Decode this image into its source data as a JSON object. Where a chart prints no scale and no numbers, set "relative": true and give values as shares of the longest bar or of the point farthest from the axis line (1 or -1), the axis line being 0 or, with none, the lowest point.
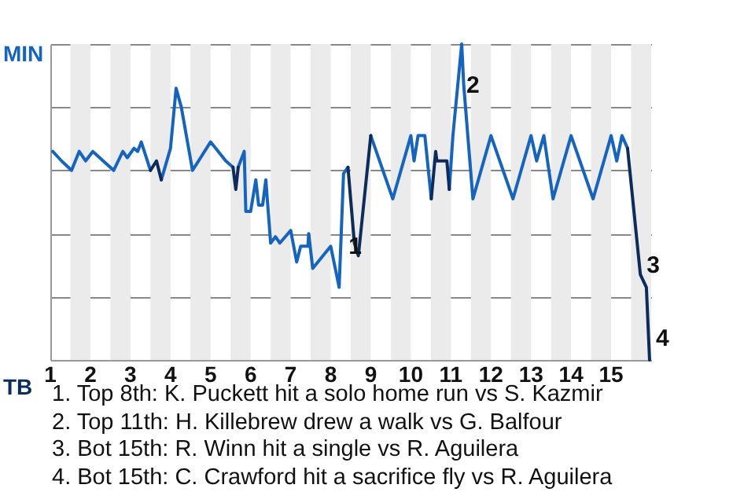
{
  "chart_data": {
    "type": "line",
    "relative": true,
    "x": [
      1.06,
      1.28,
      1.53,
      1.72,
      1.88,
      2.06,
      2.58,
      2.81,
      2.92,
      3.09,
      3.18,
      3.27,
      3.5,
      3.65,
      3.77,
      4.0,
      4.14,
      4.27,
      4.55,
      5.0,
      5.38,
      5.56,
      5.63,
      5.69,
      5.84,
      5.88,
      6.0,
      6.13,
      6.2,
      6.3,
      6.38,
      6.5,
      6.62,
      6.73,
      7.0,
      7.15,
      7.25,
      7.43,
      7.45,
      7.55,
      8.0,
      8.21,
      8.32,
      8.43,
      8.59,
      8.69,
      9.0,
      9.55,
      10.0,
      10.08,
      10.18,
      10.35,
      10.51,
      10.62,
      10.65,
      10.9,
      10.96,
      11.05,
      11.27,
      11.32,
      11.55,
      12.0,
      12.55,
      13.0,
      13.14,
      13.32,
      13.55,
      14.0,
      14.55,
      15.0,
      15.14,
      15.27,
      15.41,
      15.73,
      15.88,
      15.96
    ],
    "series": [
      {
        "name": "MIN",
        "color": "#1565c0",
        "values": [
          0.66,
          0.63,
          0.6,
          0.66,
          0.63,
          0.66,
          0.6,
          0.66,
          0.64,
          0.67,
          0.66,
          0.69,
          0.6,
          null,
          0.57,
          0.67,
          0.86,
          0.8,
          0.6,
          0.69,
          0.63,
          0.61,
          null,
          0.61,
          0.66,
          0.47,
          0.47,
          0.57,
          0.49,
          0.49,
          0.57,
          0.37,
          0.39,
          0.37,
          0.41,
          0.31,
          0.36,
          0.36,
          0.4,
          0.29,
          0.36,
          0.23,
          0.59,
          0.61,
          null,
          null,
          0.71,
          0.51,
          0.71,
          0.63,
          0.71,
          0.71,
          0.51,
          null,
          null,
          null,
          0.54,
          0.71,
          1,
          0.87,
          0.51,
          0.71,
          0.51,
          0.71,
          0.63,
          0.71,
          0.51,
          0.71,
          0.51,
          0.71,
          0.63,
          0.71,
          0.67,
          null,
          null,
          null
        ]
      },
      {
        "name": "TB",
        "color": "#0d2c5c",
        "values": [
          null,
          null,
          null,
          null,
          null,
          null,
          null,
          null,
          null,
          null,
          null,
          null,
          0.6,
          0.63,
          0.57,
          null,
          null,
          null,
          null,
          null,
          null,
          0.61,
          0.54,
          0.61,
          null,
          null,
          null,
          null,
          null,
          null,
          null,
          null,
          null,
          null,
          null,
          null,
          null,
          null,
          null,
          null,
          null,
          null,
          null,
          0.61,
          0.37,
          0.33,
          0.71,
          null,
          null,
          null,
          null,
          null,
          0.51,
          0.66,
          0.63,
          0.63,
          0.54,
          null,
          null,
          null,
          null,
          null,
          null,
          null,
          null,
          null,
          null,
          null,
          null,
          null,
          null,
          null,
          0.67,
          0.27,
          0.23,
          0
        ]
      }
    ],
    "legend": "left",
    "xlim": [
      1,
      16
    ],
    "xticks": [
      1,
      2,
      3,
      4,
      5,
      6,
      7,
      8,
      9,
      10,
      11,
      12,
      13,
      14,
      15
    ],
    "grid": "y",
    "bands": [
      {
        "axis": "x",
        "from": 1.5,
        "to": 2,
        "color": "#ebebeb"
      },
      {
        "axis": "x",
        "from": 2.5,
        "to": 3,
        "color": "#ebebeb"
      },
      {
        "axis": "x",
        "from": 3.5,
        "to": 4,
        "color": "#ebebeb"
      },
      {
        "axis": "x",
        "from": 4.5,
        "to": 5,
        "color": "#ebebeb"
      },
      {
        "axis": "x",
        "from": 5.5,
        "to": 6,
        "color": "#ebebeb"
      },
      {
        "axis": "x",
        "from": 6.5,
        "to": 7,
        "color": "#ebebeb"
      },
      {
        "axis": "x",
        "from": 7.5,
        "to": 8,
        "color": "#ebebeb"
      },
      {
        "axis": "x",
        "from": 8.5,
        "to": 9,
        "color": "#ebebeb"
      },
      {
        "axis": "x",
        "from": 9.5,
        "to": 10,
        "color": "#ebebeb"
      },
      {
        "axis": "x",
        "from": 10.5,
        "to": 11,
        "color": "#ebebeb"
      },
      {
        "axis": "x",
        "from": 11.5,
        "to": 12,
        "color": "#ebebeb"
      },
      {
        "axis": "x",
        "from": 12.5,
        "to": 13,
        "color": "#ebebeb"
      },
      {
        "axis": "x",
        "from": 13.5,
        "to": 14,
        "color": "#ebebeb"
      },
      {
        "axis": "x",
        "from": 14.5,
        "to": 15,
        "color": "#ebebeb"
      },
      {
        "axis": "x",
        "from": 15.5,
        "to": 16,
        "color": "#ebebeb"
      }
    ],
    "annotations": [
      {
        "text": "1",
        "x": 8.29,
        "y": 0.36
      },
      {
        "text": "2",
        "x": 11.23,
        "y": 0.87
      },
      {
        "text": "3",
        "x": 15.73,
        "y": 0.3
      },
      {
        "text": "4",
        "x": 15.96,
        "y": 0.07
      },
      "1. Top 8th: K. Puckett hit a solo home run vs S. Kazmir",
      "2. Top 11th: H. Killebrew drew a walk vs G. Balfour",
      "3. Bot 15th: R. Winn hit a single vs R. Aguilera",
      "4. Bot 15th: C. Crawford hit a sacrifice fly vs R. Aguilera"
    ]
  }
}
